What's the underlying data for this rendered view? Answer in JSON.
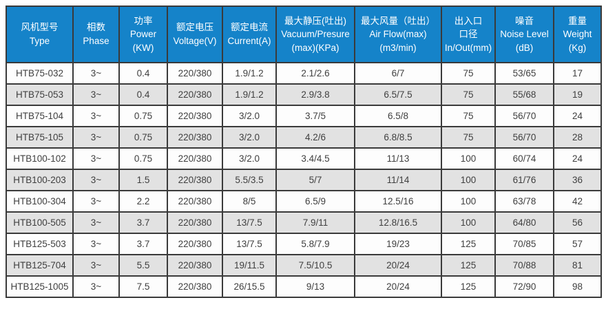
{
  "colors": {
    "header_bg": "#1583c9",
    "header_text": "#ffffff",
    "row_odd_bg": "#fdfdfd",
    "row_even_bg": "#e2e2e2",
    "cell_text": "#3f3f3f",
    "border": "#3a3a3a"
  },
  "table": {
    "columns": [
      {
        "id": "type",
        "width": 97,
        "lines": [
          "风机型号",
          "Type"
        ]
      },
      {
        "id": "phase",
        "width": 67,
        "lines": [
          "相数",
          "Phase"
        ]
      },
      {
        "id": "power",
        "width": 70,
        "lines": [
          "功率",
          "Power",
          "(KW)"
        ]
      },
      {
        "id": "voltage",
        "width": 80,
        "lines": [
          "额定电压",
          "Voltage(V)"
        ]
      },
      {
        "id": "current",
        "width": 78,
        "lines": [
          "额定电流",
          "Current(A)"
        ]
      },
      {
        "id": "vacuum",
        "width": 114,
        "lines": [
          "最大静压(吐出)",
          "Vacuum/Presure",
          "(max)(KPa)"
        ]
      },
      {
        "id": "airflow",
        "width": 126,
        "lines": [
          "最大风量（吐出）",
          "Air Flow(max)",
          "(m3/min)"
        ]
      },
      {
        "id": "inout",
        "width": 78,
        "lines": [
          "出入口",
          "口径",
          "In/Out(mm)"
        ]
      },
      {
        "id": "noise",
        "width": 85,
        "lines": [
          "噪音",
          "Noise Level",
          "(dB)"
        ]
      },
      {
        "id": "weight",
        "width": 69,
        "lines": [
          "重量",
          "Weight",
          "(Kg)"
        ]
      }
    ],
    "rows": [
      [
        "HTB75-032",
        "3~",
        "0.4",
        "220/380",
        "1.9/1.2",
        "2.1/2.6",
        "6/7",
        "75",
        "53/65",
        "17"
      ],
      [
        "HTB75-053",
        "3~",
        "0.4",
        "220/380",
        "1.9/1.2",
        "2.9/3.8",
        "6.5/7.5",
        "75",
        "55/68",
        "19"
      ],
      [
        "HTB75-104",
        "3~",
        "0.75",
        "220/380",
        "3/2.0",
        "3.7/5",
        "6.5/8",
        "75",
        "56/70",
        "24"
      ],
      [
        "HTB75-105",
        "3~",
        "0.75",
        "220/380",
        "3/2.0",
        "4.2/6",
        "6.8/8.5",
        "75",
        "56/70",
        "28"
      ],
      [
        "HTB100-102",
        "3~",
        "0.75",
        "220/380",
        "3/2.0",
        "3.4/4.5",
        "11/13",
        "100",
        "60/74",
        "24"
      ],
      [
        "HTB100-203",
        "3~",
        "1.5",
        "220/380",
        "5.5/3.5",
        "5/7",
        "11/14",
        "100",
        "61/76",
        "36"
      ],
      [
        "HTB100-304",
        "3~",
        "2.2",
        "220/380",
        "8/5",
        "6.5/9",
        "12.5/16",
        "100",
        "63/78",
        "42"
      ],
      [
        "HTB100-505",
        "3~",
        "3.7",
        "220/380",
        "13/7.5",
        "7.9/11",
        "12.8/16.5",
        "100",
        "64/80",
        "56"
      ],
      [
        "HTB125-503",
        "3~",
        "3.7",
        "220/380",
        "13/7.5",
        "5.8/7.9",
        "19/23",
        "125",
        "70/85",
        "57"
      ],
      [
        "HTB125-704",
        "3~",
        "5.5",
        "220/380",
        "19/11.5",
        "7.5/10.5",
        "20/24",
        "125",
        "70/88",
        "81"
      ],
      [
        "HTB125-1005",
        "3~",
        "7.5",
        "220/380",
        "26/15.5",
        "9/13",
        "20/24",
        "125",
        "72/90",
        "98"
      ]
    ]
  }
}
